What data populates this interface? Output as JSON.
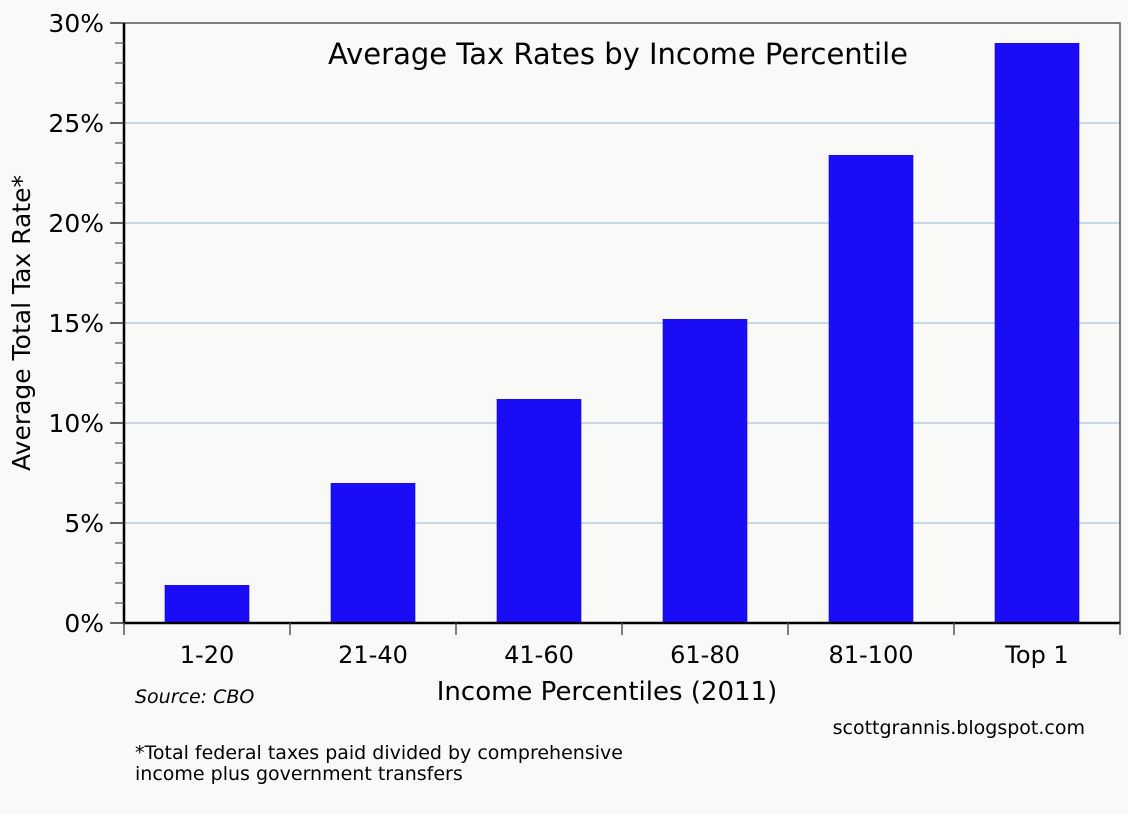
{
  "chart_data": {
    "type": "bar",
    "title": "Average Tax Rates by Income Percentile",
    "xlabel": "Income Percentiles (2011)",
    "ylabel": "Average Total Tax Rate*",
    "categories": [
      "1-20",
      "21-40",
      "41-60",
      "61-80",
      "81-100",
      "Top 1"
    ],
    "values": [
      1.9,
      7.0,
      11.2,
      15.2,
      23.4,
      29.0
    ],
    "ylim": [
      0,
      30
    ],
    "yticks": [
      0,
      5,
      10,
      15,
      20,
      25,
      30
    ],
    "ytick_labels": [
      "0%",
      "5%",
      "10%",
      "15%",
      "20%",
      "25%",
      "30%"
    ],
    "grid": true,
    "bar_color": "#1a0cf5",
    "grid_color": "#a9c4dc",
    "source": "Source: CBO",
    "credit": "scottgrannis.blogspot.com",
    "footnote_lines": [
      "*Total federal taxes paid divided by comprehensive",
      "income plus government transfers"
    ]
  }
}
